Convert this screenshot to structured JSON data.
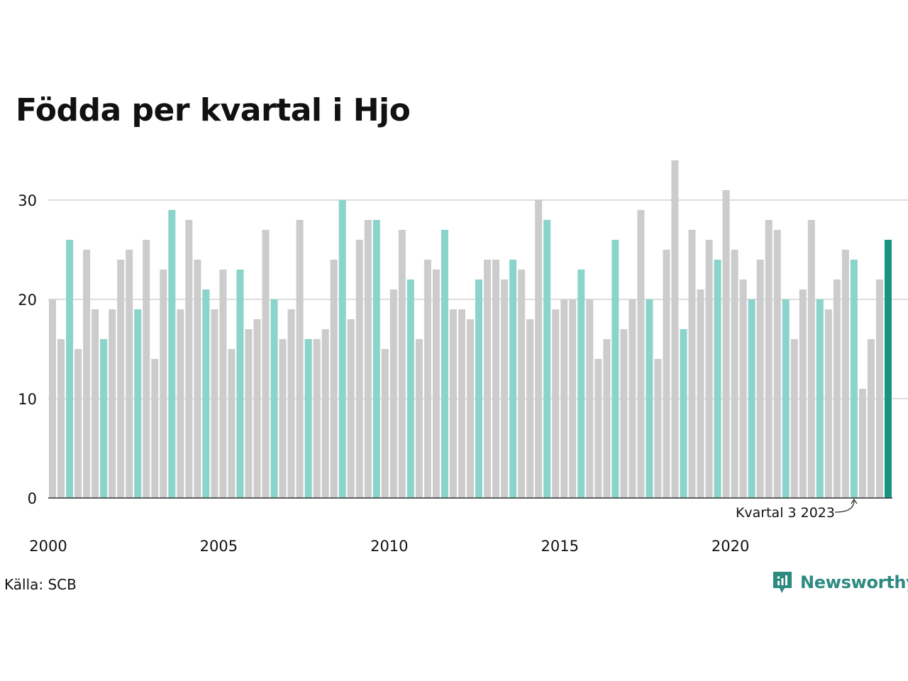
{
  "title": "Födda per kvartal i Hjo",
  "source": "Källa: SCB",
  "brand": "Newsworthy",
  "colors": {
    "bar": "#cccccc",
    "highlight": "#8ad4cb",
    "latest": "#1a9482",
    "grid": "#dddddd",
    "axis": "#333333",
    "brand": "#2d8a80"
  },
  "chart_data": {
    "type": "bar",
    "title": "Födda per kvartal i Hjo",
    "xlabel": "",
    "ylabel": "",
    "ylim": [
      0,
      34
    ],
    "yticks": [
      0,
      10,
      20,
      30
    ],
    "xticks": [
      "2000",
      "2005",
      "2010",
      "2015",
      "2020"
    ],
    "grid": true,
    "x_start": "2000 kvartal 1",
    "values": [
      20,
      16,
      26,
      15,
      25,
      19,
      16,
      19,
      24,
      25,
      19,
      26,
      14,
      23,
      29,
      19,
      28,
      24,
      21,
      19,
      23,
      15,
      23,
      17,
      18,
      27,
      20,
      16,
      19,
      28,
      16,
      16,
      17,
      24,
      30,
      18,
      26,
      28,
      28,
      15,
      21,
      27,
      22,
      16,
      24,
      23,
      27,
      19,
      19,
      18,
      22,
      24,
      24,
      22,
      24,
      23,
      18,
      30,
      28,
      19,
      20,
      20,
      23,
      20,
      14,
      16,
      26,
      17,
      20,
      29,
      20,
      14,
      25,
      34,
      17,
      27,
      21,
      26,
      24,
      31,
      25,
      22,
      20,
      24,
      28,
      27,
      20,
      16,
      21,
      28,
      20,
      19,
      22,
      25,
      24,
      11,
      16,
      22,
      26
    ],
    "highlight_quarter": 3,
    "annotation": {
      "label": "Kvartal 3 2023",
      "index": 94
    }
  }
}
